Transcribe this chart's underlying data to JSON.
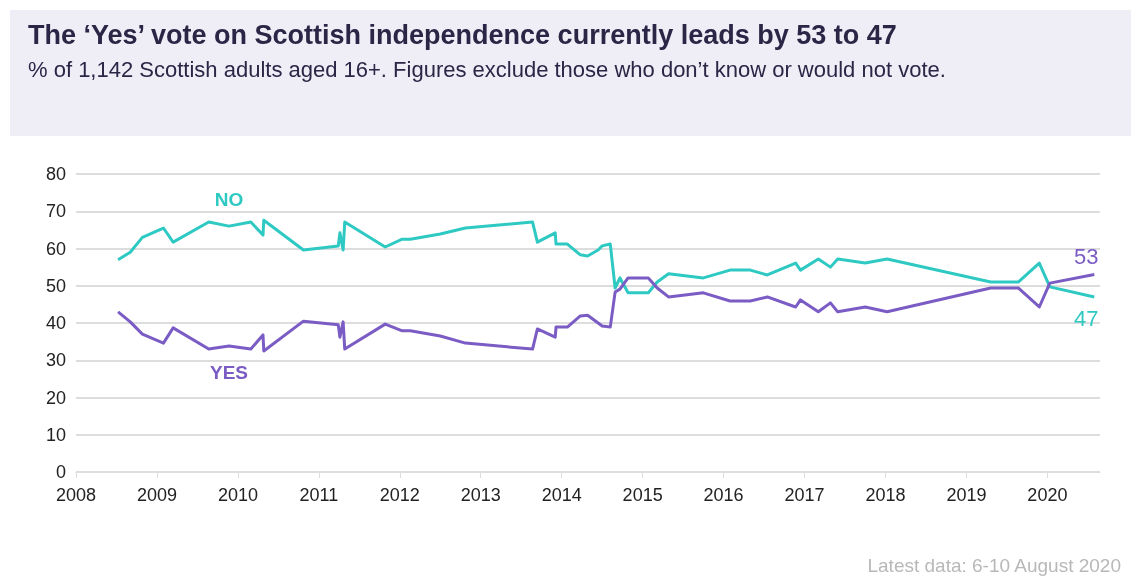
{
  "chart_data": {
    "type": "line",
    "title": "The ‘Yes’ vote on Scottish independence currently leads by 53 to 47",
    "subtitle": "% of 1,142 Scottish adults aged 16+. Figures exclude those who don’t know or would not vote.",
    "x": [
      2008.52,
      2008.67,
      2008.82,
      2009.08,
      2009.2,
      2009.64,
      2009.89,
      2010.16,
      2010.31,
      2010.32,
      2010.81,
      2011.24,
      2011.26,
      2011.3,
      2011.32,
      2011.82,
      2012.03,
      2012.13,
      2012.5,
      2012.81,
      2013.64,
      2013.7,
      2013.92,
      2013.93,
      2014.07,
      2014.23,
      2014.32,
      2014.45,
      2014.5,
      2014.6,
      2014.66,
      2014.72,
      2014.82,
      2015.07,
      2015.18,
      2015.32,
      2015.75,
      2016.08,
      2016.33,
      2016.54,
      2016.89,
      2016.95,
      2017.17,
      2017.32,
      2017.41,
      2017.75,
      2018.02,
      2019.3,
      2019.64,
      2019.9,
      2020.03,
      2020.58
    ],
    "series": [
      {
        "name": "NO",
        "color": "#2ec9c3",
        "values": [
          57,
          59,
          63,
          65.5,
          61.7,
          67.1,
          66,
          67.1,
          63.6,
          67.6,
          59.6,
          60.7,
          64.2,
          59.6,
          67.1,
          60.4,
          62.5,
          62.5,
          63.9,
          65.5,
          67.1,
          61.7,
          64.2,
          61.2,
          61.2,
          58.3,
          58,
          59.6,
          60.7,
          61.2,
          49.4,
          52.1,
          48.1,
          48.1,
          51,
          53.2,
          52.1,
          54.2,
          54.2,
          52.9,
          56.1,
          54.2,
          57.2,
          55,
          57.2,
          56.1,
          57.2,
          51,
          51,
          56.1,
          49.7,
          47
        ],
        "value_labels": [
          null,
          null,
          null,
          null,
          null,
          null,
          null,
          null,
          null,
          null,
          null,
          null,
          null,
          null,
          null,
          null,
          null,
          null,
          null,
          null,
          null,
          null,
          null,
          null,
          null,
          null,
          null,
          null,
          null,
          null,
          null,
          null,
          null,
          null,
          null,
          null,
          null,
          null,
          null,
          null,
          null,
          null,
          null,
          null,
          null,
          null,
          null,
          null,
          null,
          null,
          null,
          "47"
        ]
      },
      {
        "name": "YES",
        "color": "#7b5cc4",
        "values": [
          43,
          40.3,
          37,
          34.6,
          38.7,
          33,
          33.8,
          33,
          36.8,
          32.5,
          40.5,
          39.5,
          36.2,
          40.3,
          33,
          39.7,
          37.9,
          37.9,
          36.5,
          34.6,
          33,
          38.4,
          36.2,
          38.9,
          38.9,
          41.9,
          42.1,
          40,
          39.2,
          38.9,
          48.3,
          49.1,
          52.1,
          52.1,
          49.4,
          47,
          48.1,
          45.9,
          45.9,
          47,
          44.3,
          46.2,
          43,
          45.4,
          43,
          44.3,
          43,
          49.4,
          49.4,
          44.3,
          50.7,
          53
        ],
        "value_labels": [
          null,
          null,
          null,
          null,
          null,
          null,
          null,
          null,
          null,
          null,
          null,
          null,
          null,
          null,
          null,
          null,
          null,
          null,
          null,
          null,
          null,
          null,
          null,
          null,
          null,
          null,
          null,
          null,
          null,
          null,
          null,
          null,
          null,
          null,
          null,
          null,
          null,
          null,
          null,
          null,
          null,
          null,
          null,
          null,
          null,
          null,
          null,
          null,
          null,
          null,
          null,
          "53"
        ]
      }
    ],
    "xlim": [
      2008,
      2020.65
    ],
    "xticks": [
      2008,
      2009,
      2010,
      2011,
      2012,
      2013,
      2014,
      2015,
      2016,
      2017,
      2018,
      2019,
      2020
    ],
    "ylim": [
      0,
      80
    ],
    "yticks": [
      0,
      10,
      20,
      30,
      40,
      50,
      60,
      70,
      80
    ],
    "grid": "y",
    "marker": "none",
    "line_style": "solid",
    "annotations": [
      "Latest data: 6-10 August 2020"
    ]
  }
}
